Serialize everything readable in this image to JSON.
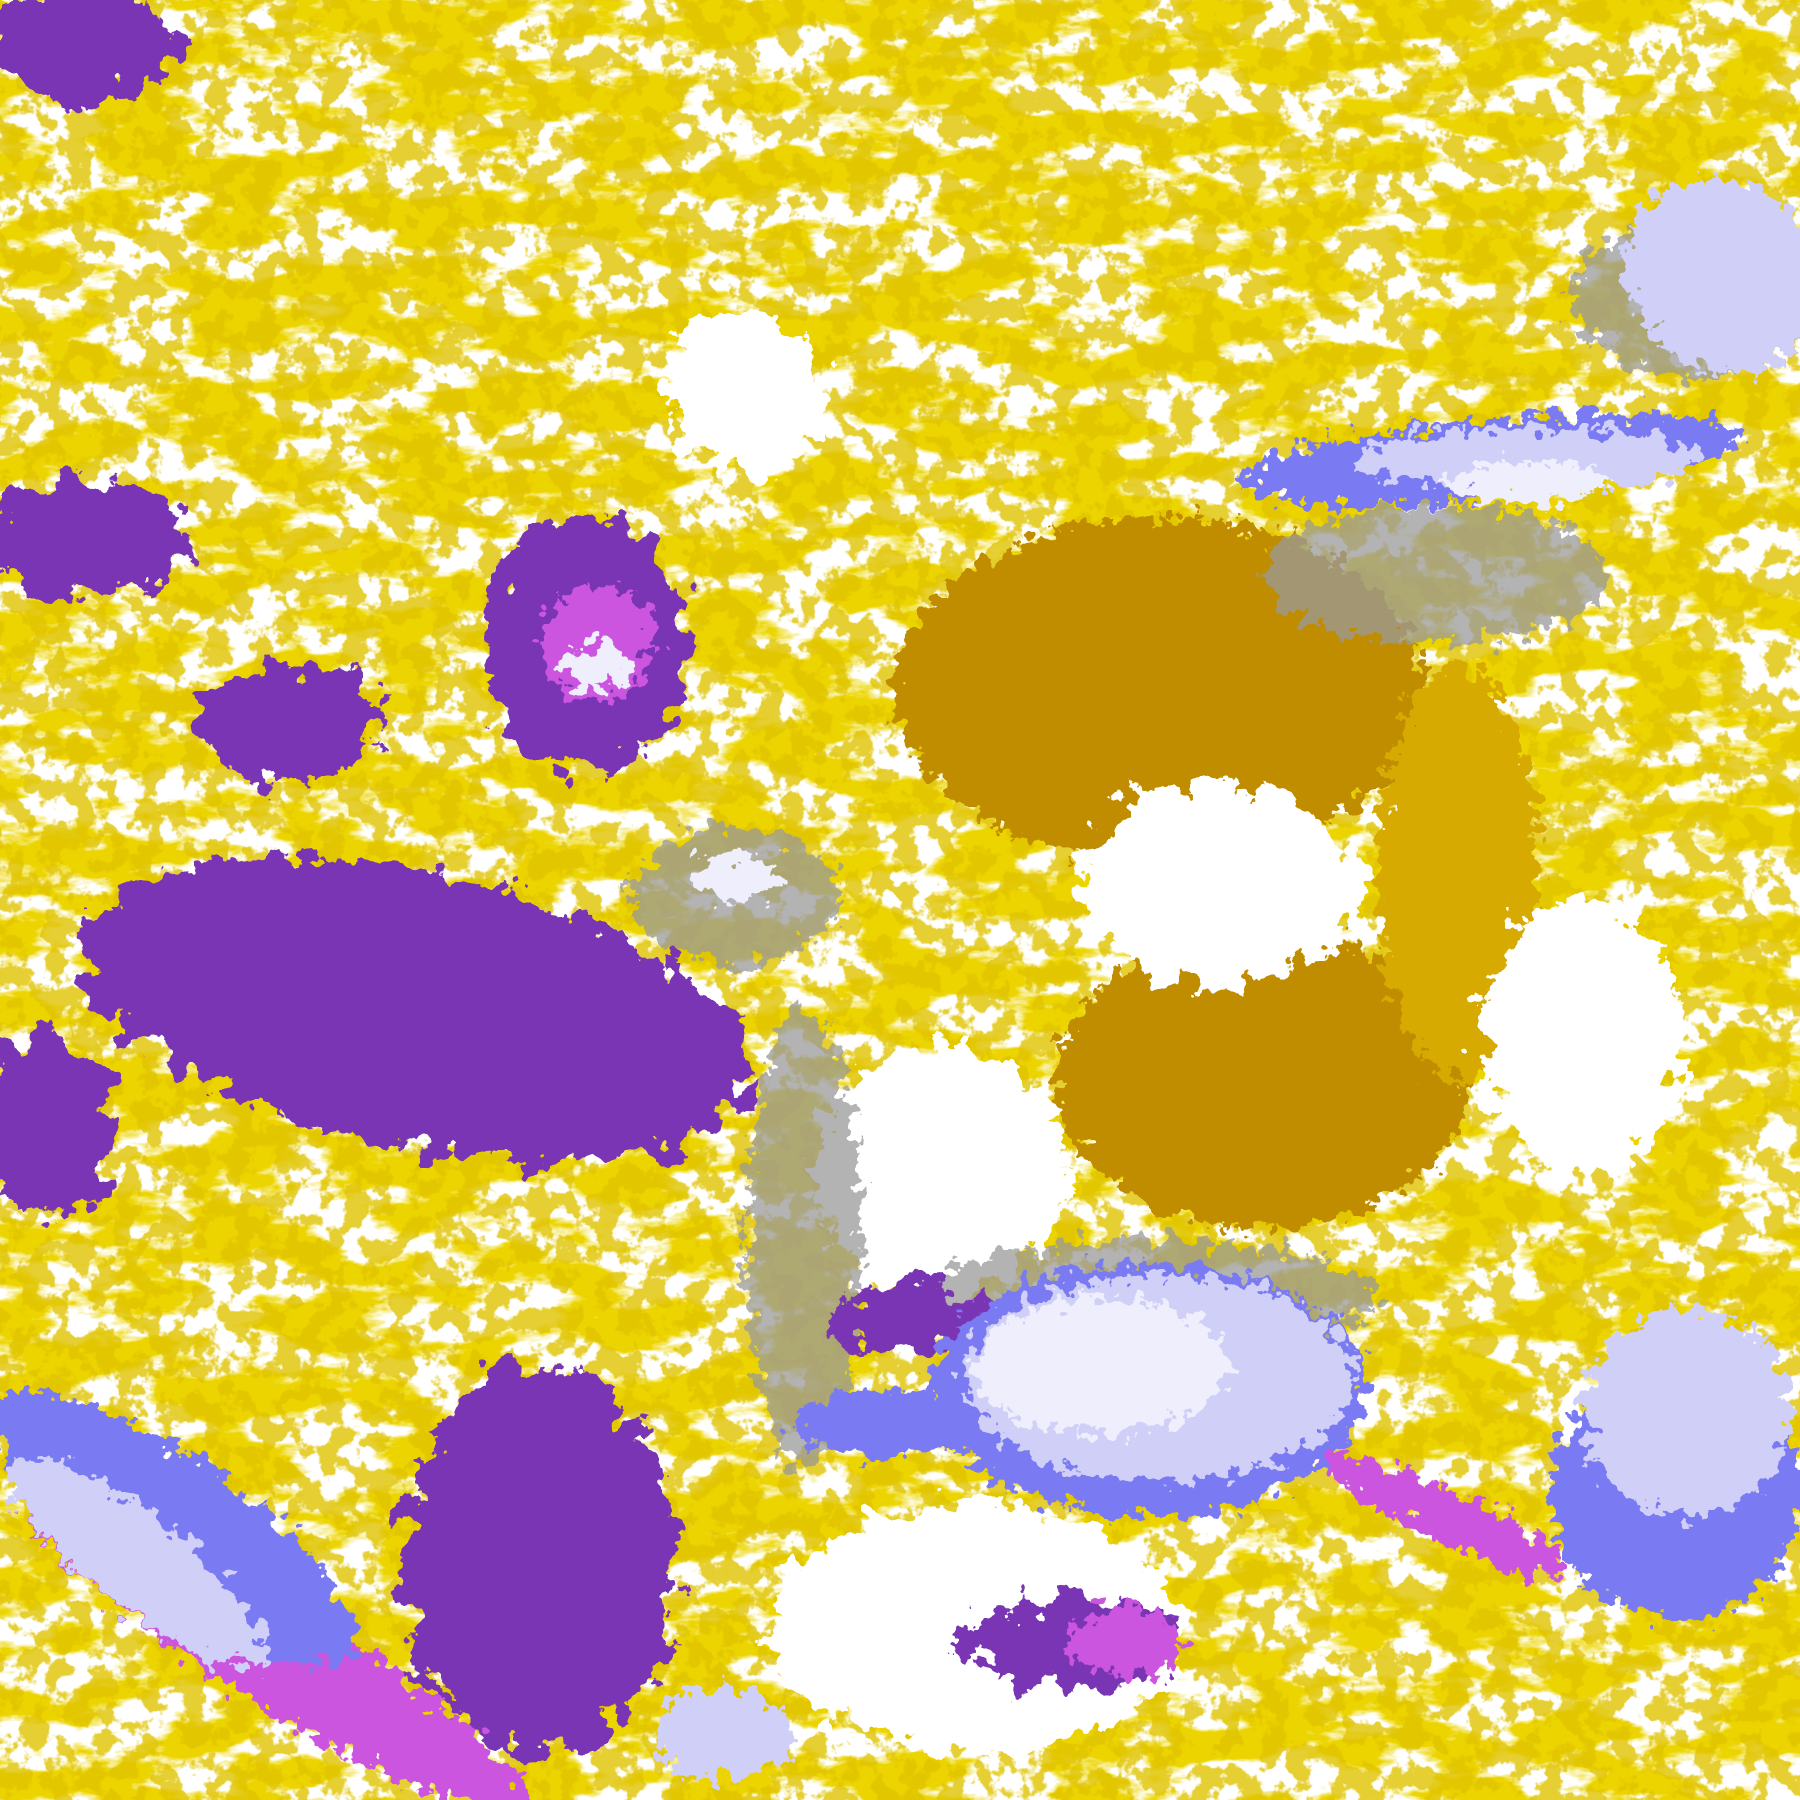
{
  "palette": {
    "background": "#ffffff",
    "gold": "#d6aa00",
    "gold_dark": "#c08c00",
    "purple": "#7a34b4",
    "magenta": "#cc55e0",
    "blue": "#7a7af2",
    "lavender": "#cfcff8",
    "pale": "#eeeefc",
    "gray": "#9a9a9a"
  }
}
